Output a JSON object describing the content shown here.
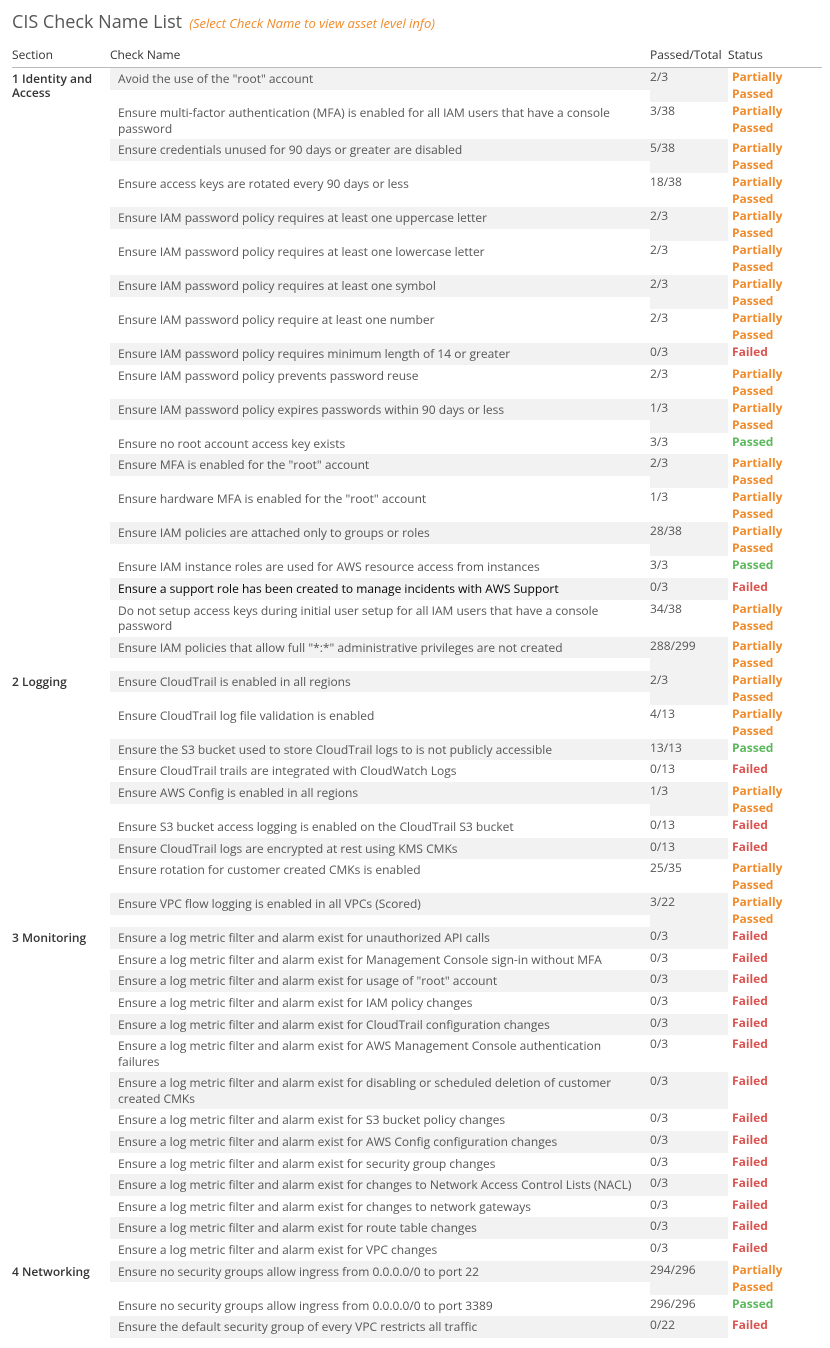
{
  "colors": {
    "partial": "#f08b2b",
    "failed": "#d9534f",
    "passed": "#5cb85c",
    "altRow": "#f2f2f2",
    "text": "#555555"
  },
  "header": {
    "title": "CIS Check Name List",
    "subtitle": "(Select Check Name to view asset level info)"
  },
  "columns": {
    "section": "Section",
    "name": "Check Name",
    "passed": "Passed/Total",
    "status": "Status"
  },
  "statusLabels": {
    "partial": "Partially Passed",
    "failed": "Failed",
    "passed": "Passed"
  },
  "sections": [
    {
      "label": "1 Identity and Access",
      "rows": [
        {
          "name": "Avoid the use of the \"root\" account",
          "passed": "2/3",
          "status": "partial"
        },
        {
          "name": "Ensure multi-factor authentication (MFA) is enabled for all IAM users that have a console password",
          "passed": "3/38",
          "status": "partial"
        },
        {
          "name": "Ensure credentials unused for 90 days or greater are disabled",
          "passed": "5/38",
          "status": "partial"
        },
        {
          "name": "Ensure access keys are rotated every 90 days or less",
          "passed": "18/38",
          "status": "partial"
        },
        {
          "name": "Ensure IAM password policy requires at least one uppercase letter",
          "passed": "2/3",
          "status": "partial"
        },
        {
          "name": "Ensure IAM password policy requires at least one lowercase letter",
          "passed": "2/3",
          "status": "partial"
        },
        {
          "name": "Ensure IAM password policy requires at least one symbol",
          "passed": "2/3",
          "status": "partial"
        },
        {
          "name": "Ensure IAM password policy require at least one number",
          "passed": "2/3",
          "status": "partial"
        },
        {
          "name": "Ensure IAM password policy requires minimum length of 14 or greater",
          "passed": "0/3",
          "status": "failed"
        },
        {
          "name": "Ensure IAM password policy prevents password reuse",
          "passed": "2/3",
          "status": "partial"
        },
        {
          "name": "Ensure IAM password policy expires passwords within 90 days or less",
          "passed": "1/3",
          "status": "partial"
        },
        {
          "name": "Ensure no root account access key exists",
          "passed": "3/3",
          "status": "passed"
        },
        {
          "name": "Ensure MFA is enabled for the \"root\" account",
          "passed": "2/3",
          "status": "partial"
        },
        {
          "name": "Ensure hardware MFA is enabled for the \"root\" account",
          "passed": "1/3",
          "status": "partial"
        },
        {
          "name": "Ensure IAM policies are attached only to groups or roles",
          "passed": "28/38",
          "status": "partial"
        },
        {
          "name": "Ensure IAM instance roles are used for AWS resource access from instances",
          "passed": "3/3",
          "status": "passed"
        },
        {
          "name": "Ensure a support role has been created to manage incidents with AWS Support",
          "passed": "0/3",
          "status": "failed",
          "highlight": true
        },
        {
          "name": "Do not setup access keys during initial user setup for all IAM users that have a console password",
          "passed": "34/38",
          "status": "partial"
        },
        {
          "name": "Ensure IAM policies that allow full \"*:*\" administrative privileges are not created",
          "passed": "288/299",
          "status": "partial"
        }
      ]
    },
    {
      "label": "2 Logging",
      "rows": [
        {
          "name": "Ensure CloudTrail is enabled in all regions",
          "passed": "2/3",
          "status": "partial"
        },
        {
          "name": "Ensure CloudTrail log file validation is enabled",
          "passed": "4/13",
          "status": "partial"
        },
        {
          "name": "Ensure the S3 bucket used to store CloudTrail logs to is not publicly accessible",
          "passed": "13/13",
          "status": "passed"
        },
        {
          "name": "Ensure CloudTrail trails are integrated with CloudWatch Logs",
          "passed": "0/13",
          "status": "failed"
        },
        {
          "name": "Ensure AWS Config is enabled in all regions",
          "passed": "1/3",
          "status": "partial"
        },
        {
          "name": "Ensure S3 bucket access logging is enabled on the CloudTrail S3 bucket",
          "passed": "0/13",
          "status": "failed"
        },
        {
          "name": "Ensure CloudTrail logs are encrypted at rest using KMS CMKs",
          "passed": "0/13",
          "status": "failed"
        },
        {
          "name": "Ensure rotation for customer created CMKs is enabled",
          "passed": "25/35",
          "status": "partial"
        },
        {
          "name": "Ensure VPC flow logging is enabled in all VPCs (Scored)",
          "passed": "3/22",
          "status": "partial"
        }
      ]
    },
    {
      "label": "3 Monitoring",
      "rows": [
        {
          "name": "Ensure a log metric filter and alarm exist for unauthorized API calls",
          "passed": "0/3",
          "status": "failed"
        },
        {
          "name": "Ensure a log metric filter and alarm exist for Management Console sign-in without MFA",
          "passed": "0/3",
          "status": "failed"
        },
        {
          "name": "Ensure a log metric filter and alarm exist for usage of \"root\" account",
          "passed": "0/3",
          "status": "failed"
        },
        {
          "name": "Ensure a log metric filter and alarm exist for IAM policy changes",
          "passed": "0/3",
          "status": "failed"
        },
        {
          "name": "Ensure a log metric filter and alarm exist for CloudTrail configuration changes",
          "passed": "0/3",
          "status": "failed"
        },
        {
          "name": "Ensure a log metric filter and alarm exist for AWS Management Console authentication failures",
          "passed": "0/3",
          "status": "failed"
        },
        {
          "name": "Ensure a log metric filter and alarm exist for disabling or scheduled deletion of customer created CMKs",
          "passed": "0/3",
          "status": "failed"
        },
        {
          "name": "Ensure a log metric filter and alarm exist for S3 bucket policy changes",
          "passed": "0/3",
          "status": "failed"
        },
        {
          "name": "Ensure a log metric filter and alarm exist for AWS Config configuration changes",
          "passed": "0/3",
          "status": "failed"
        },
        {
          "name": "Ensure a log metric filter and alarm exist for security group changes",
          "passed": "0/3",
          "status": "failed"
        },
        {
          "name": "Ensure a log metric filter and alarm exist for changes to Network Access Control Lists (NACL)",
          "passed": "0/3",
          "status": "failed"
        },
        {
          "name": "Ensure a log metric filter and alarm exist for changes to network gateways",
          "passed": "0/3",
          "status": "failed"
        },
        {
          "name": "Ensure a log metric filter and alarm exist for route table changes",
          "passed": "0/3",
          "status": "failed"
        },
        {
          "name": "Ensure a log metric filter and alarm exist for VPC changes",
          "passed": "0/3",
          "status": "failed"
        }
      ]
    },
    {
      "label": "4 Networking",
      "rows": [
        {
          "name": "Ensure no security groups allow ingress from 0.0.0.0/0 to port 22",
          "passed": "294/296",
          "status": "partial"
        },
        {
          "name": "Ensure no security groups allow ingress from 0.0.0.0/0 to port 3389",
          "passed": "296/296",
          "status": "passed"
        },
        {
          "name": "Ensure the default security group of every VPC restricts all traffic",
          "passed": "0/22",
          "status": "failed"
        }
      ]
    }
  ]
}
